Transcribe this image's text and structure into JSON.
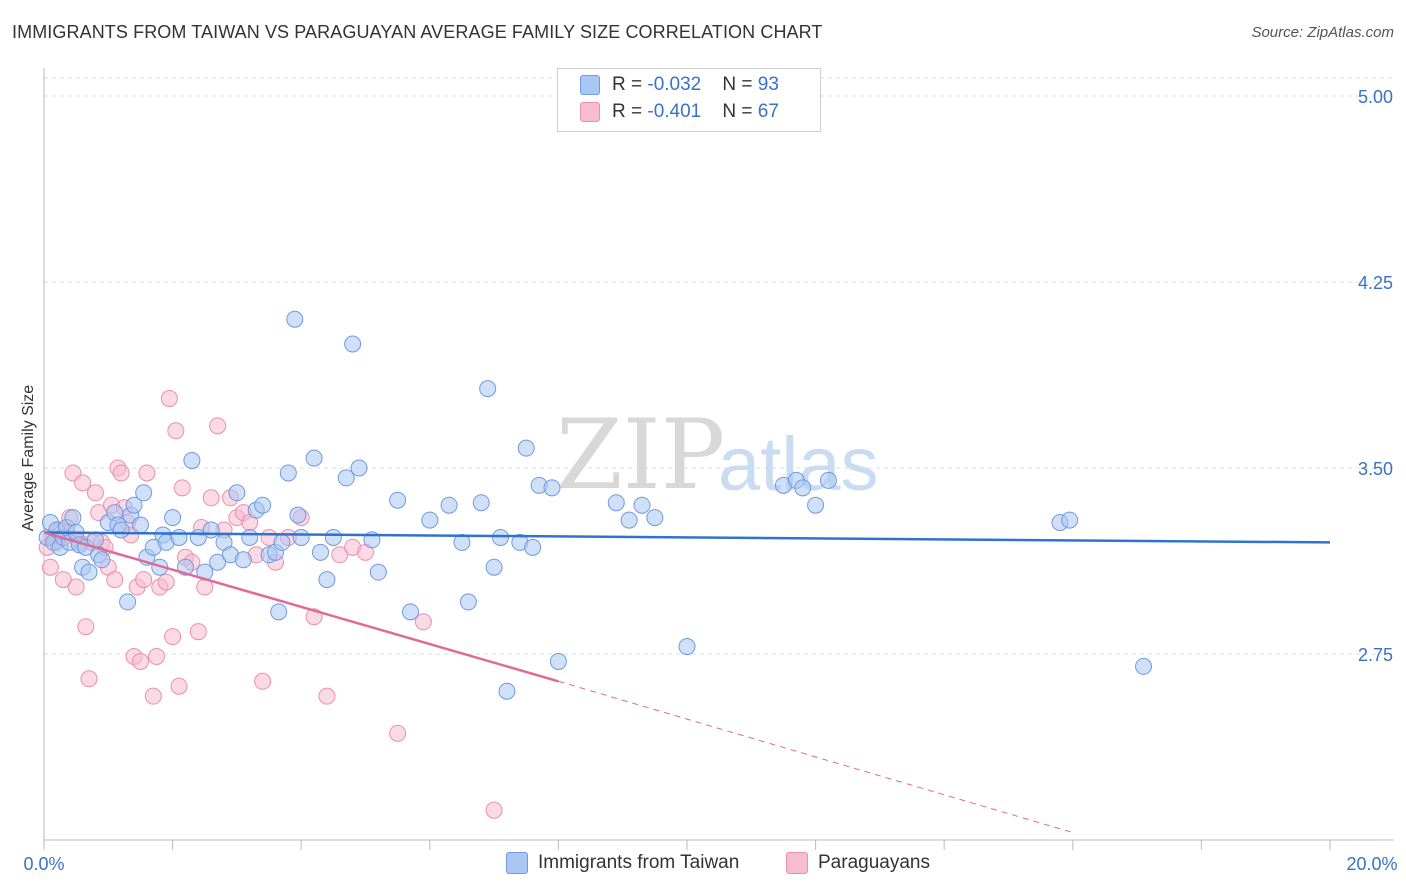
{
  "title": "IMMIGRANTS FROM TAIWAN VS PARAGUAYAN AVERAGE FAMILY SIZE CORRELATION CHART",
  "source": "Source: ZipAtlas.com",
  "watermark": {
    "zip": "ZIP",
    "atlas": "atlas"
  },
  "legend": {
    "rows": [
      {
        "r_label": "R = ",
        "r_value": "-0.032",
        "n_label": "N = ",
        "n_value": "93"
      },
      {
        "r_label": "R = ",
        "r_value": "-0.401",
        "n_label": "N = ",
        "n_value": "67"
      }
    ]
  },
  "colors": {
    "taiwan_fill": "#aac6f2",
    "taiwan_stroke": "#6f9ae0",
    "taiwan_line": "#2f73d0",
    "paraguay_fill": "#f7bcd0",
    "paraguay_stroke": "#ea8fae",
    "paraguay_line": "#e06a96",
    "grid": "#dddddd",
    "tick_text": "#3a72c8"
  },
  "chart_data": {
    "type": "scatter",
    "title": "IMMIGRANTS FROM TAIWAN VS PARAGUAYAN AVERAGE FAMILY SIZE CORRELATION CHART",
    "ylabel": "Average Family Size",
    "xlim": [
      0,
      20
    ],
    "ylim": [
      2.0,
      5.1
    ],
    "x_tick_labels": [
      "0.0%",
      "20.0%"
    ],
    "y_ticks": [
      2.75,
      3.5,
      4.25,
      5.0
    ],
    "y_tick_labels": [
      "2.75",
      "3.50",
      "4.25",
      "5.00"
    ],
    "grid": "horizontal dashed",
    "series": [
      {
        "name": "Immigrants from Taiwan",
        "trend": {
          "x": [
            0.0,
            20.0
          ],
          "y": [
            3.24,
            3.2
          ]
        },
        "points": [
          [
            0.05,
            3.22
          ],
          [
            0.1,
            3.28
          ],
          [
            0.15,
            3.2
          ],
          [
            0.2,
            3.25
          ],
          [
            0.25,
            3.18
          ],
          [
            0.3,
            3.22
          ],
          [
            0.35,
            3.26
          ],
          [
            0.4,
            3.2
          ],
          [
            0.45,
            3.3
          ],
          [
            0.5,
            3.24
          ],
          [
            0.55,
            3.19
          ],
          [
            0.6,
            3.1
          ],
          [
            0.65,
            3.18
          ],
          [
            0.7,
            3.08
          ],
          [
            0.8,
            3.21
          ],
          [
            0.85,
            3.15
          ],
          [
            0.9,
            3.13
          ],
          [
            1.0,
            3.28
          ],
          [
            1.1,
            3.32
          ],
          [
            1.15,
            3.27
          ],
          [
            1.2,
            3.25
          ],
          [
            1.3,
            2.96
          ],
          [
            1.35,
            3.31
          ],
          [
            1.4,
            3.35
          ],
          [
            1.5,
            3.27
          ],
          [
            1.55,
            3.4
          ],
          [
            1.6,
            3.14
          ],
          [
            1.7,
            3.18
          ],
          [
            1.8,
            3.1
          ],
          [
            1.85,
            3.23
          ],
          [
            1.9,
            3.2
          ],
          [
            2.0,
            3.3
          ],
          [
            2.1,
            3.22
          ],
          [
            2.2,
            3.1
          ],
          [
            2.3,
            3.53
          ],
          [
            2.4,
            3.22
          ],
          [
            2.5,
            3.08
          ],
          [
            2.6,
            3.25
          ],
          [
            2.7,
            3.12
          ],
          [
            2.8,
            3.2
          ],
          [
            2.9,
            3.15
          ],
          [
            3.0,
            3.4
          ],
          [
            3.1,
            3.13
          ],
          [
            3.2,
            3.22
          ],
          [
            3.3,
            3.33
          ],
          [
            3.4,
            3.35
          ],
          [
            3.5,
            3.15
          ],
          [
            3.6,
            3.16
          ],
          [
            3.65,
            2.92
          ],
          [
            3.7,
            3.2
          ],
          [
            3.8,
            3.48
          ],
          [
            3.9,
            4.1
          ],
          [
            3.95,
            3.31
          ],
          [
            4.0,
            3.22
          ],
          [
            4.2,
            3.54
          ],
          [
            4.3,
            3.16
          ],
          [
            4.4,
            3.05
          ],
          [
            4.5,
            3.22
          ],
          [
            4.7,
            3.46
          ],
          [
            4.8,
            4.0
          ],
          [
            4.9,
            3.5
          ],
          [
            5.1,
            3.21
          ],
          [
            5.2,
            3.08
          ],
          [
            5.5,
            3.37
          ],
          [
            5.7,
            2.92
          ],
          [
            6.0,
            3.29
          ],
          [
            6.3,
            3.35
          ],
          [
            6.5,
            3.2
          ],
          [
            6.6,
            2.96
          ],
          [
            6.8,
            3.36
          ],
          [
            6.9,
            3.82
          ],
          [
            7.0,
            3.1
          ],
          [
            7.1,
            3.22
          ],
          [
            7.2,
            2.6
          ],
          [
            7.4,
            3.2
          ],
          [
            7.5,
            3.58
          ],
          [
            7.6,
            3.18
          ],
          [
            7.7,
            3.43
          ],
          [
            7.9,
            3.42
          ],
          [
            8.0,
            2.72
          ],
          [
            8.9,
            3.36
          ],
          [
            9.1,
            3.29
          ],
          [
            9.3,
            3.35
          ],
          [
            9.5,
            3.3
          ],
          [
            10.0,
            2.78
          ],
          [
            11.5,
            3.43
          ],
          [
            11.7,
            3.45
          ],
          [
            11.8,
            3.42
          ],
          [
            12.0,
            3.35
          ],
          [
            12.2,
            3.45
          ],
          [
            15.8,
            3.28
          ],
          [
            15.95,
            3.29
          ],
          [
            17.1,
            2.7
          ]
        ]
      },
      {
        "name": "Paraguayans",
        "trend": {
          "x": [
            0.0,
            8.0
          ],
          "y": [
            3.24,
            2.64
          ]
        },
        "trend_extension": {
          "x": [
            8.0,
            16.0
          ],
          "y": [
            2.64,
            2.03
          ]
        },
        "points": [
          [
            0.05,
            3.18
          ],
          [
            0.1,
            3.1
          ],
          [
            0.15,
            3.22
          ],
          [
            0.2,
            3.2
          ],
          [
            0.25,
            3.25
          ],
          [
            0.3,
            3.05
          ],
          [
            0.35,
            3.24
          ],
          [
            0.4,
            3.3
          ],
          [
            0.45,
            3.48
          ],
          [
            0.5,
            3.02
          ],
          [
            0.55,
            3.2
          ],
          [
            0.6,
            3.44
          ],
          [
            0.65,
            2.86
          ],
          [
            0.7,
            2.65
          ],
          [
            0.75,
            3.2
          ],
          [
            0.8,
            3.4
          ],
          [
            0.85,
            3.32
          ],
          [
            0.9,
            3.2
          ],
          [
            0.95,
            3.18
          ],
          [
            1.0,
            3.1
          ],
          [
            1.05,
            3.35
          ],
          [
            1.1,
            3.05
          ],
          [
            1.15,
            3.5
          ],
          [
            1.2,
            3.48
          ],
          [
            1.25,
            3.34
          ],
          [
            1.3,
            3.28
          ],
          [
            1.35,
            3.23
          ],
          [
            1.4,
            2.74
          ],
          [
            1.45,
            3.02
          ],
          [
            1.5,
            2.72
          ],
          [
            1.55,
            3.05
          ],
          [
            1.6,
            3.48
          ],
          [
            1.7,
            2.58
          ],
          [
            1.75,
            2.74
          ],
          [
            1.8,
            3.02
          ],
          [
            1.9,
            3.04
          ],
          [
            1.95,
            3.78
          ],
          [
            2.0,
            2.82
          ],
          [
            2.05,
            3.65
          ],
          [
            2.1,
            2.62
          ],
          [
            2.15,
            3.42
          ],
          [
            2.2,
            3.14
          ],
          [
            2.3,
            3.12
          ],
          [
            2.4,
            2.84
          ],
          [
            2.45,
            3.26
          ],
          [
            2.5,
            3.02
          ],
          [
            2.6,
            3.38
          ],
          [
            2.7,
            3.67
          ],
          [
            2.8,
            3.25
          ],
          [
            2.9,
            3.38
          ],
          [
            3.0,
            3.3
          ],
          [
            3.1,
            3.32
          ],
          [
            3.2,
            3.28
          ],
          [
            3.3,
            3.15
          ],
          [
            3.4,
            2.64
          ],
          [
            3.5,
            3.22
          ],
          [
            3.6,
            3.12
          ],
          [
            3.8,
            3.22
          ],
          [
            4.0,
            3.3
          ],
          [
            4.2,
            2.9
          ],
          [
            4.4,
            2.58
          ],
          [
            4.6,
            3.15
          ],
          [
            4.8,
            3.18
          ],
          [
            5.0,
            3.16
          ],
          [
            5.5,
            2.43
          ],
          [
            5.9,
            2.88
          ],
          [
            7.0,
            2.12
          ]
        ]
      }
    ]
  },
  "bottom_legend": [
    {
      "label": "Immigrants from Taiwan"
    },
    {
      "label": "Paraguayans"
    }
  ]
}
